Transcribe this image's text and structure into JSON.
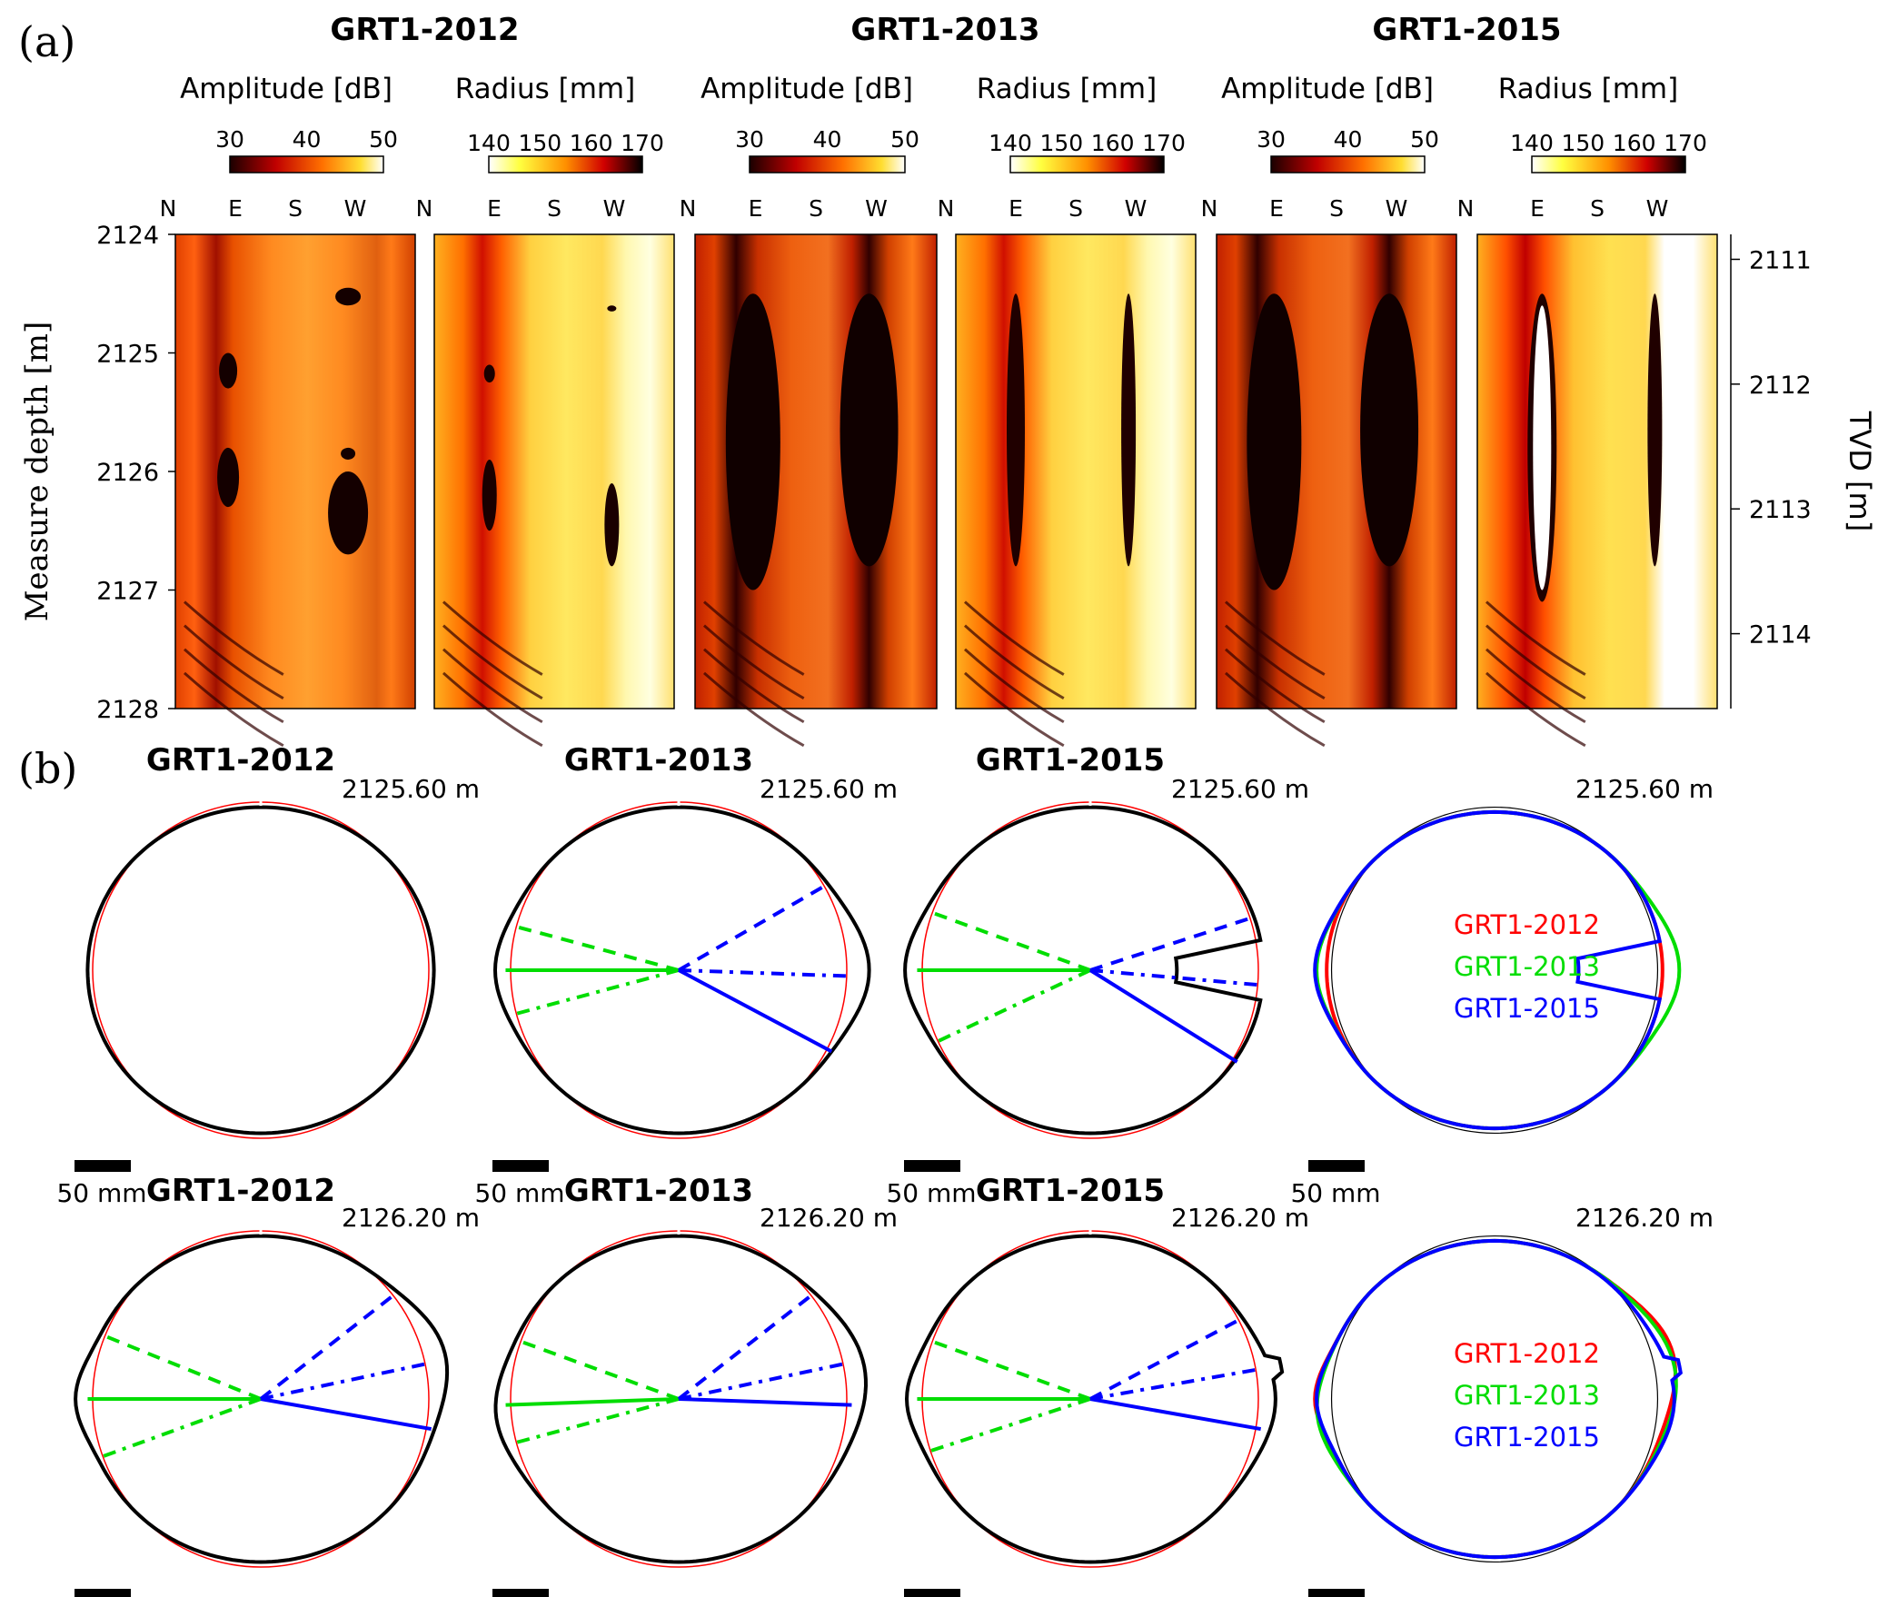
{
  "panel_labels": {
    "a": "(a)",
    "b": "(b)"
  },
  "chart_data": [
    {
      "type": "heatmap",
      "panel": "(a)",
      "wells": [
        "GRT1-2012",
        "GRT1-2013",
        "GRT1-2015"
      ],
      "images": [
        {
          "well": "GRT1-2012",
          "kind": "amplitude",
          "colorbar_title": "Amplitude [dB]",
          "colorbar_ticks": [
            "30",
            "40",
            "50"
          ],
          "range": [
            30,
            50
          ],
          "colormap": "hot",
          "compass": [
            "N",
            "E",
            "S",
            "W",
            "N"
          ]
        },
        {
          "well": "GRT1-2012",
          "kind": "radius",
          "colorbar_title": "Radius [mm]",
          "colorbar_ticks": [
            "140",
            "150",
            "160",
            "170"
          ],
          "range": [
            140,
            170
          ],
          "colormap": "hot-reversed",
          "compass": [
            "E",
            "S",
            "W"
          ]
        },
        {
          "well": "GRT1-2013",
          "kind": "amplitude",
          "colorbar_title": "Amplitude [dB]",
          "colorbar_ticks": [
            "30",
            "40",
            "50"
          ],
          "range": [
            30,
            50
          ],
          "colormap": "hot",
          "compass": [
            "N",
            "E",
            "S",
            "W",
            "N"
          ]
        },
        {
          "well": "GRT1-2013",
          "kind": "radius",
          "colorbar_title": "Radius [mm]",
          "colorbar_ticks": [
            "140",
            "150",
            "160",
            "170"
          ],
          "range": [
            140,
            170
          ],
          "colormap": "hot-reversed",
          "compass": [
            "E",
            "S",
            "W"
          ]
        },
        {
          "well": "GRT1-2015",
          "kind": "amplitude",
          "colorbar_title": "Amplitude [dB]",
          "colorbar_ticks": [
            "30",
            "40",
            "50"
          ],
          "range": [
            30,
            50
          ],
          "colormap": "hot",
          "compass": [
            "N",
            "E",
            "S",
            "W",
            "N"
          ]
        },
        {
          "well": "GRT1-2015",
          "kind": "radius",
          "colorbar_title": "Radius [mm]",
          "colorbar_ticks": [
            "140",
            "150",
            "160",
            "170"
          ],
          "range": [
            140,
            170
          ],
          "colormap": "hot-reversed",
          "compass": [
            "E",
            "S",
            "W"
          ]
        }
      ],
      "ylabel": "Measure  depth [m]",
      "yticks": [
        "2124",
        "2125",
        "2126",
        "2127",
        "2128"
      ],
      "ylim": [
        2124,
        2128
      ],
      "y2label": "TVD [m]",
      "y2ticks": [
        "2111",
        "2112",
        "2113",
        "2114"
      ],
      "y2lim": [
        2110.8,
        2114.6
      ]
    },
    {
      "type": "polar_profile",
      "panel": "(b)",
      "depths": [
        "2125.60 m",
        "2126.20 m"
      ],
      "plot_titles": [
        "GRT1-2012",
        "GRT1-2013",
        "GRT1-2015",
        ""
      ],
      "scale_bar": "50 mm",
      "nominal_radius_mm": 152,
      "legend": [
        "GRT1-2012",
        "GRT1-2013",
        "GRT1-2015"
      ],
      "colors": {
        "GRT1-2012": "#ff0000",
        "GRT1-2013": "#00dd00",
        "GRT1-2015": "#0000ff",
        "profile": "#000000",
        "nominal": "#ff0000"
      },
      "rows": [
        {
          "depth": "2125.60 m",
          "wells": [
            {
              "name": "GRT1-2012",
              "bumps": [],
              "breakout_lines": false
            },
            {
              "name": "GRT1-2013",
              "bumps": [
                {
                  "az": 90,
                  "w": 14,
                  "a": 0.1
                },
                {
                  "az": 270,
                  "w": 12,
                  "a": 0.06
                }
              ],
              "breakout_lines": true,
              "green_angles": [
                255,
                270,
                285
              ],
              "blue_angles": [
                60,
                92,
                118
              ]
            },
            {
              "name": "GRT1-2015",
              "bumps": [
                {
                  "az": 270,
                  "w": 12,
                  "a": 0.07
                }
              ],
              "notch_az": 90,
              "breakout_lines": true,
              "green_angles": [
                245,
                270,
                290
              ],
              "blue_angles": [
                72,
                95,
                122
              ]
            }
          ],
          "legend_on_right": true
        },
        {
          "depth": "2126.20 m",
          "wells": [
            {
              "name": "GRT1-2012",
              "bumps": [
                {
                  "az": 75,
                  "w": 14,
                  "a": 0.1
                },
                {
                  "az": 270,
                  "w": 10,
                  "a": 0.07
                }
              ],
              "breakout_lines": true,
              "green_angles": [
                250,
                270,
                292
              ],
              "blue_angles": [
                52,
                78,
                100
              ]
            },
            {
              "name": "GRT1-2013",
              "bumps": [
                {
                  "az": 80,
                  "w": 16,
                  "a": 0.09
                },
                {
                  "az": 265,
                  "w": 12,
                  "a": 0.06
                }
              ],
              "breakout_lines": true,
              "green_angles": [
                255,
                268,
                290
              ],
              "blue_angles": [
                52,
                78,
                92
              ]
            },
            {
              "name": "GRT1-2015",
              "bumps": [
                {
                  "az": 90,
                  "w": 14,
                  "a": 0.07
                },
                {
                  "az": 270,
                  "w": 10,
                  "a": 0.06
                }
              ],
              "spike_az": 80,
              "breakout_lines": true,
              "green_angles": [
                252,
                270,
                290
              ],
              "blue_angles": [
                62,
                80,
                100
              ]
            }
          ],
          "legend_on_right": true
        }
      ]
    }
  ]
}
